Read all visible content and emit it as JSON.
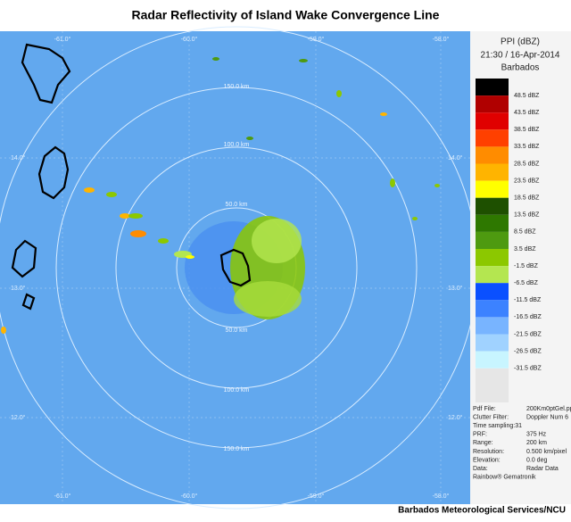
{
  "header": {
    "title": "Radar Reflectivity of Island Wake Convergence Line"
  },
  "legend": {
    "title": "PPI (dBZ)",
    "time": "21:30 / 16-Apr-2014",
    "site": "Barbados",
    "levels": [
      {
        "label": "48.5 dBZ",
        "color": "#000000"
      },
      {
        "label": "43.5 dBZ",
        "color": "#b00000"
      },
      {
        "label": "38.5 dBZ",
        "color": "#e00000"
      },
      {
        "label": "33.5 dBZ",
        "color": "#ff4000"
      },
      {
        "label": "28.5 dBZ",
        "color": "#ff8c00"
      },
      {
        "label": "23.5 dBZ",
        "color": "#ffb400"
      },
      {
        "label": "18.5 dBZ",
        "color": "#ffff00"
      },
      {
        "label": "13.5 dBZ",
        "color": "#1e5000"
      },
      {
        "label": "8.5 dBZ",
        "color": "#2e7800"
      },
      {
        "label": "3.5 dBZ",
        "color": "#4e9a10"
      },
      {
        "label": "-1.5 dBZ",
        "color": "#8cc800"
      },
      {
        "label": "-6.5 dBZ",
        "color": "#b4e650"
      },
      {
        "label": "-11.5 dBZ",
        "color": "#0a50ff"
      },
      {
        "label": "-16.5 dBZ",
        "color": "#3c82ff"
      },
      {
        "label": "-21.5 dBZ",
        "color": "#78b4ff"
      },
      {
        "label": "-26.5 dBZ",
        "color": "#a0d2ff"
      },
      {
        "label": "-31.5 dBZ",
        "color": "#c8f5ff"
      }
    ]
  },
  "info": [
    [
      "Pdf File:",
      "200Km0ptGel.ppi"
    ],
    [
      "Clutter Filter:",
      "Doppler Num 6"
    ],
    [
      "Time sampling:31",
      ""
    ],
    [
      "PRF:",
      "375 Hz"
    ],
    [
      "Range:",
      "200 km"
    ],
    [
      "Resolution:",
      "0.500 km/pixel"
    ],
    [
      "Elevation:",
      "0.0 deg"
    ],
    [
      "Data:",
      "Radar Data"
    ],
    [
      "Rainbow® Gematronik",
      ""
    ]
  ],
  "map": {
    "lon_labels": [
      "-61.0°",
      "-60.0°",
      "-59.0°",
      "-58.0°"
    ],
    "lat_labels": [
      "14.0°",
      "13.0°",
      "12.0°"
    ],
    "ring_labels": [
      "50.0 km",
      "100.0 km",
      "150.0 km"
    ]
  },
  "footer": "Barbados Meteorological Services/NCU"
}
